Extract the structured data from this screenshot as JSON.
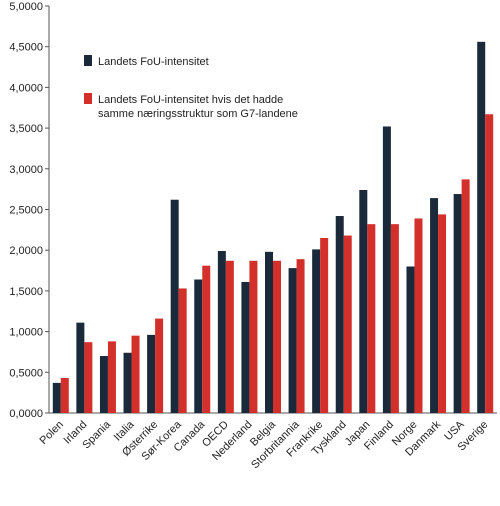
{
  "chart_data": {
    "type": "bar",
    "title": "",
    "xlabel": "",
    "ylabel": "",
    "ylim": [
      0,
      5
    ],
    "yticks": [
      "0,0000",
      "0,5000",
      "1,0000",
      "1,5000",
      "2,0000",
      "2,5000",
      "3,0000",
      "3,5000",
      "4,0000",
      "4,5000",
      "5,0000"
    ],
    "grid": false,
    "legend_position": "top-left",
    "categories": [
      "Polen",
      "Irland",
      "Spania",
      "Italia",
      "Østerrike",
      "Sør-Korea",
      "Canada",
      "OECD",
      "Nederland",
      "Belgia",
      "Storbritannia",
      "Frankrike",
      "Tyskland",
      "Japan",
      "Finland",
      "Norge",
      "Danmark",
      "USA",
      "Sverige"
    ],
    "series": [
      {
        "name": "Landets FoU-intensitet",
        "color": "#1b2a3a",
        "values": [
          0.37,
          1.11,
          0.7,
          0.74,
          0.96,
          2.62,
          1.64,
          1.99,
          1.61,
          1.98,
          1.78,
          2.01,
          2.42,
          2.74,
          3.52,
          1.8,
          2.64,
          2.69,
          4.56
        ]
      },
      {
        "name": "Landets FoU-intensitet hvis det hadde samme næringsstruktur som G7-landene",
        "color": "#d4302b",
        "values": [
          0.43,
          0.87,
          0.88,
          0.95,
          1.16,
          1.53,
          1.81,
          1.87,
          1.87,
          1.87,
          1.89,
          2.15,
          2.18,
          2.32,
          2.32,
          2.39,
          2.44,
          2.87,
          3.67
        ]
      }
    ],
    "legend": [
      {
        "lines": [
          "Landets FoU-intensitet"
        ]
      },
      {
        "lines": [
          "Landets FoU-intensitet hvis det hadde",
          "samme næringsstruktur som G7-landene"
        ]
      }
    ]
  }
}
